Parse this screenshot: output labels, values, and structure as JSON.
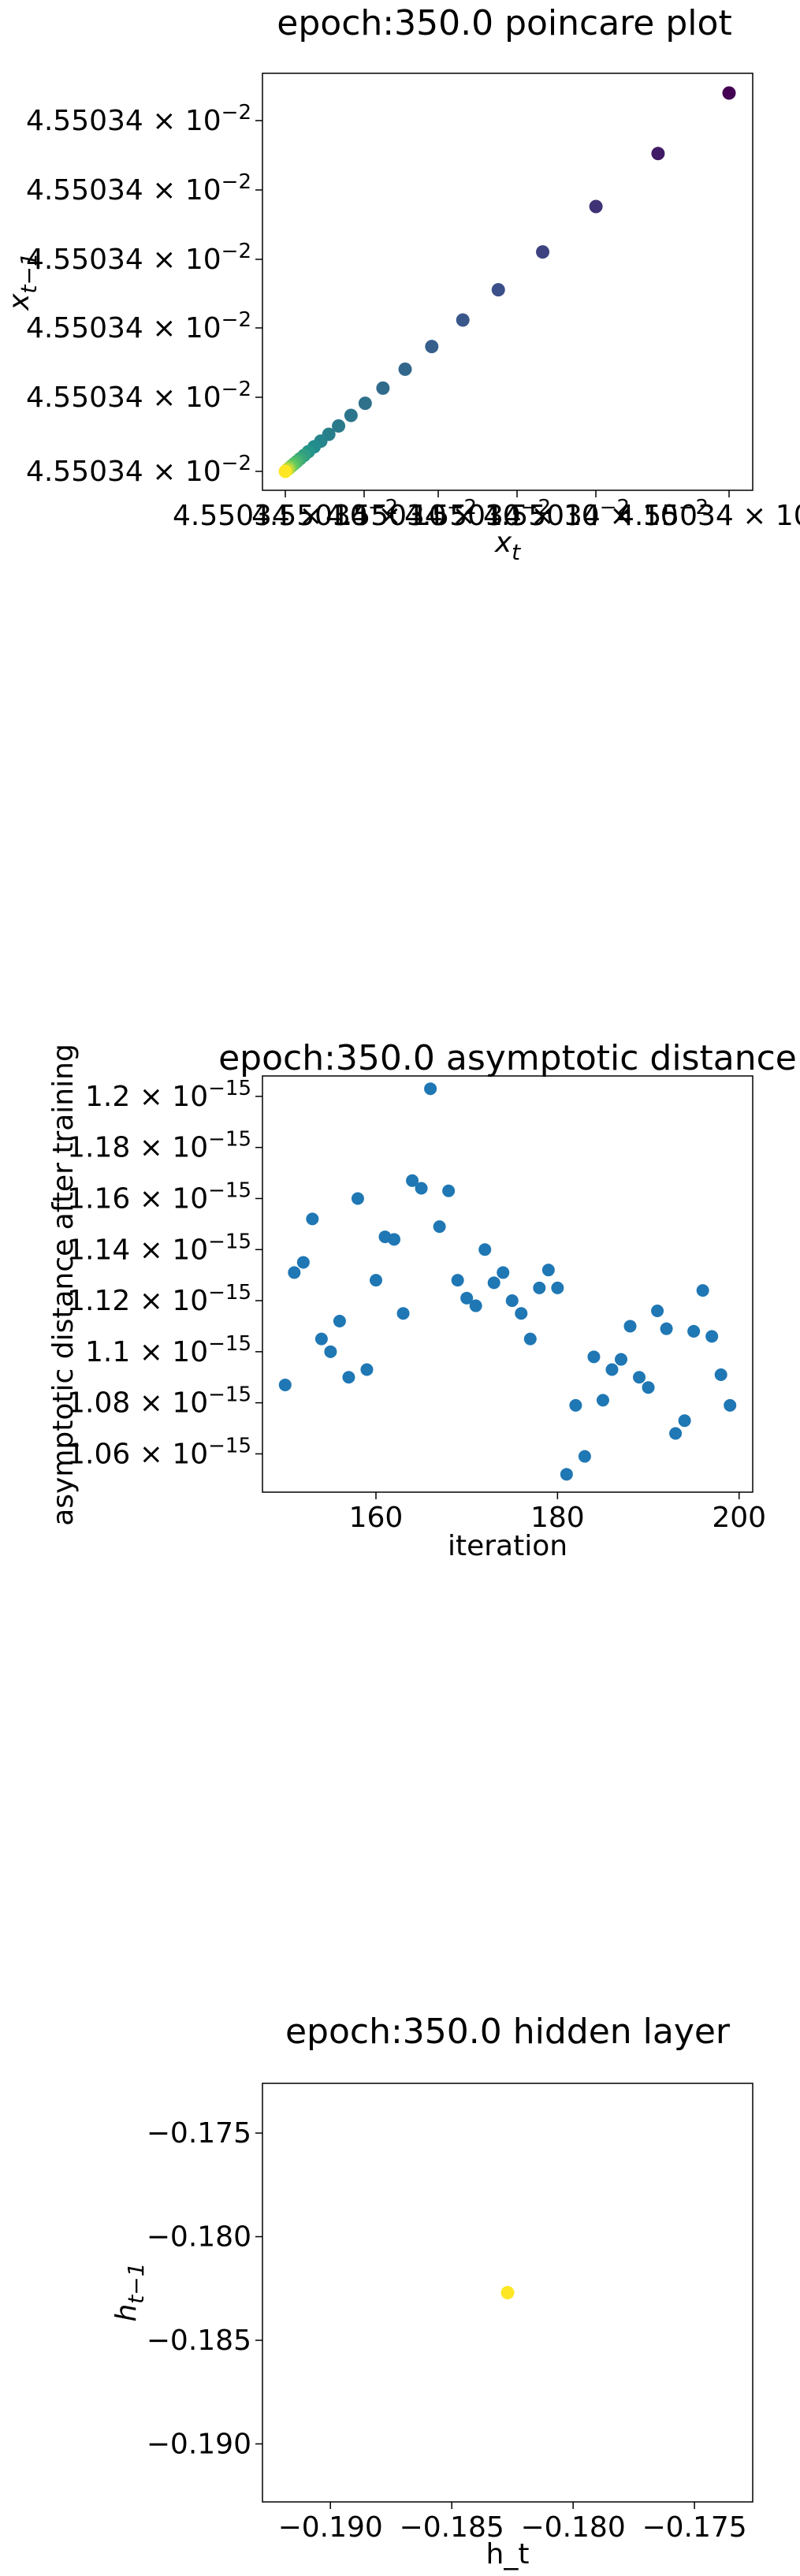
{
  "chart_data": [
    {
      "type": "scatter",
      "title": "epoch:350.0 poincare plot",
      "xlabel": "x_t",
      "ylabel": "x_{t-1}",
      "colormap": "viridis",
      "grid": false,
      "x_ticks": [
        "4.55034 × 10^-2",
        "4.55034 × 10^-2",
        "4.55034 × 10^-2",
        "4.55034 × 10^-2",
        "4.55034 × 10^-2",
        "4.55034 × 10^-2"
      ],
      "y_ticks": [
        "4.55034 × 10^-2",
        "4.55034 × 10^-2",
        "4.55034 × 10^-2",
        "4.55034 × 10^-2",
        "4.55034 × 10^-2",
        "4.55034 × 10^-2"
      ],
      "xlim": [
        0,
        1
      ],
      "ylim": [
        0,
        1
      ],
      "points": [
        {
          "x": 1.0,
          "y": 1.0,
          "c": 0.0
        },
        {
          "x": 0.84,
          "y": 0.84,
          "c": 0.08
        },
        {
          "x": 0.7,
          "y": 0.7,
          "c": 0.15
        },
        {
          "x": 0.58,
          "y": 0.58,
          "c": 0.2
        },
        {
          "x": 0.48,
          "y": 0.48,
          "c": 0.24
        },
        {
          "x": 0.4,
          "y": 0.4,
          "c": 0.27
        },
        {
          "x": 0.33,
          "y": 0.33,
          "c": 0.3
        },
        {
          "x": 0.27,
          "y": 0.27,
          "c": 0.33
        },
        {
          "x": 0.22,
          "y": 0.22,
          "c": 0.35
        },
        {
          "x": 0.18,
          "y": 0.18,
          "c": 0.37
        },
        {
          "x": 0.148,
          "y": 0.148,
          "c": 0.39
        },
        {
          "x": 0.12,
          "y": 0.12,
          "c": 0.41
        },
        {
          "x": 0.098,
          "y": 0.098,
          "c": 0.43
        },
        {
          "x": 0.08,
          "y": 0.08,
          "c": 0.45
        },
        {
          "x": 0.065,
          "y": 0.065,
          "c": 0.48
        },
        {
          "x": 0.052,
          "y": 0.052,
          "c": 0.52
        },
        {
          "x": 0.042,
          "y": 0.042,
          "c": 0.56
        },
        {
          "x": 0.033,
          "y": 0.033,
          "c": 0.6
        },
        {
          "x": 0.026,
          "y": 0.026,
          "c": 0.65
        },
        {
          "x": 0.02,
          "y": 0.02,
          "c": 0.7
        },
        {
          "x": 0.014,
          "y": 0.014,
          "c": 0.76
        },
        {
          "x": 0.009,
          "y": 0.009,
          "c": 0.82
        },
        {
          "x": 0.005,
          "y": 0.005,
          "c": 0.9
        },
        {
          "x": 0.0,
          "y": 0.0,
          "c": 1.0
        }
      ]
    },
    {
      "type": "scatter",
      "title": "epoch:350.0 asymptotic distance",
      "xlabel": "iteration",
      "ylabel": "asymptotic distance after training",
      "color": "#1f77b4",
      "grid": false,
      "xlim": [
        147.5,
        201.5
      ],
      "ylim": [
        1.045,
        1.208
      ],
      "y_exponent": "10^-15",
      "x_ticks": [
        160,
        180,
        200
      ],
      "y_ticks": [
        1.06,
        1.08,
        1.1,
        1.12,
        1.14,
        1.16,
        1.18,
        1.2
      ],
      "y_tick_labels": [
        "1.06 × 10^-15",
        "1.08 × 10^-15",
        "1.1 × 10^-15",
        "1.12 × 10^-15",
        "1.14 × 10^-15",
        "1.16 × 10^-15",
        "1.18 × 10^-15",
        "1.2 × 10^-15"
      ],
      "x": [
        150,
        151,
        152,
        153,
        154,
        155,
        156,
        157,
        158,
        159,
        160,
        161,
        162,
        163,
        164,
        165,
        166,
        167,
        168,
        169,
        170,
        171,
        172,
        173,
        174,
        175,
        176,
        177,
        178,
        179,
        180,
        181,
        182,
        183,
        184,
        185,
        186,
        187,
        188,
        189,
        190,
        191,
        192,
        193,
        194,
        195,
        196,
        197,
        198,
        199
      ],
      "y": [
        1.087,
        1.131,
        1.135,
        1.152,
        1.105,
        1.1,
        1.112,
        1.09,
        1.16,
        1.093,
        1.128,
        1.145,
        1.144,
        1.115,
        1.167,
        1.164,
        1.203,
        1.149,
        1.163,
        1.128,
        1.121,
        1.118,
        1.14,
        1.127,
        1.131,
        1.12,
        1.115,
        1.105,
        1.125,
        1.132,
        1.125,
        1.052,
        1.079,
        1.059,
        1.098,
        1.081,
        1.093,
        1.097,
        1.11,
        1.09,
        1.086,
        1.116,
        1.109,
        1.068,
        1.073,
        1.108,
        1.124,
        1.106,
        1.091,
        1.079
      ]
    },
    {
      "type": "scatter",
      "title": "epoch:350.0 hidden layer",
      "xlabel": "h_t",
      "ylabel": "h_{t-1}",
      "grid": false,
      "xlim": [
        -0.1928,
        -0.1726
      ],
      "ylim": [
        -0.1928,
        -0.1726
      ],
      "x_ticks": [
        -0.19,
        -0.185,
        -0.18,
        -0.175
      ],
      "y_ticks": [
        -0.19,
        -0.185,
        -0.18,
        -0.175
      ],
      "tick_labels": [
        "−0.190",
        "−0.185",
        "−0.180",
        "−0.175"
      ],
      "points": [
        {
          "x": -0.1827,
          "y": -0.1827,
          "color": "#fde725"
        }
      ]
    }
  ]
}
